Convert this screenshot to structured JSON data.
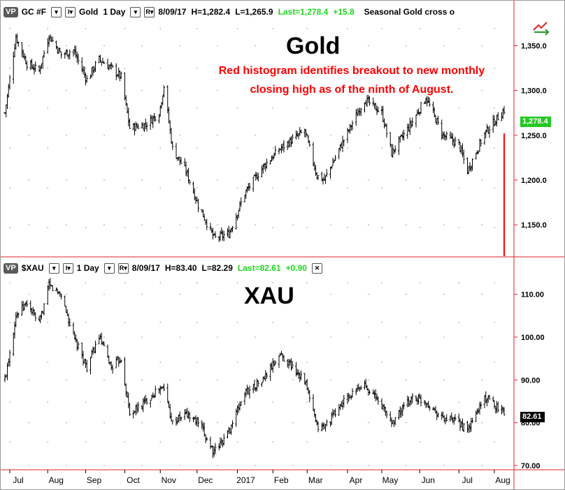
{
  "top_panel": {
    "toolbar": {
      "vp_label": "VP",
      "symbol": "GC #F",
      "instrument": "Gold",
      "period": "1 Day",
      "date": "8/09/17",
      "high": "H=1,282.4",
      "low": "L=1,265.9",
      "last": "Last=1,278.4",
      "change": "+15.8",
      "study": "Seasonal Gold cross o"
    },
    "title": "Gold",
    "annotation_line1": "Red histogram identifies breakout to new monthly",
    "annotation_line2": "closing high as of the ninth of August.",
    "last_price_tag": "1,278.4"
  },
  "bottom_panel": {
    "toolbar": {
      "vp_label": "VP",
      "symbol": "$XAU",
      "period": "1 Day",
      "date": "8/09/17",
      "high": "H=83.40",
      "low": "L=82.29",
      "last": "Last=82.61",
      "change": "+0.90",
      "close_symbol": "✕"
    },
    "title": "XAU",
    "last_price_tag": "82.61"
  },
  "colors": {
    "bars": "#000000",
    "accent_red": "#ff0000",
    "up_green": "#1fd51f",
    "axis_red": "#e02020"
  },
  "icons": [
    "dropdown-arrow-icon",
    "indicator-menu-icon",
    "arrows-swap-icon",
    "close-icon"
  ],
  "chart_data": [
    {
      "type": "ohlc",
      "title": "Gold",
      "y_ticks": [
        "1,150.0",
        "1,200.0",
        "1,250.0",
        "1,300.0",
        "1,350.0"
      ],
      "ylim": [
        1115,
        1380
      ],
      "x_ticks": [
        "Jul",
        "Aug",
        "Sep",
        "Oct",
        "Nov",
        "Dec",
        "2017",
        "Feb",
        "Mar",
        "Apr",
        "May",
        "Jun",
        "Jul",
        "Aug"
      ],
      "grid": "dotted",
      "approx_closes": {
        "x": [
          "2016-06-27",
          "2016-07-06",
          "2016-07-15",
          "2016-07-25",
          "2016-08-02",
          "2016-08-12",
          "2016-08-22",
          "2016-09-02",
          "2016-09-12",
          "2016-09-22",
          "2016-09-30",
          "2016-10-07",
          "2016-10-20",
          "2016-10-31",
          "2016-11-04",
          "2016-11-11",
          "2016-11-22",
          "2016-12-02",
          "2016-12-15",
          "2016-12-27",
          "2017-01-09",
          "2017-01-24",
          "2017-02-07",
          "2017-02-27",
          "2017-03-09",
          "2017-03-15",
          "2017-03-31",
          "2017-04-17",
          "2017-05-01",
          "2017-05-09",
          "2017-05-26",
          "2017-06-06",
          "2017-06-20",
          "2017-07-03",
          "2017-07-10",
          "2017-07-24",
          "2017-08-09"
        ],
        "y": [
          1275,
          1360,
          1330,
          1322,
          1362,
          1340,
          1345,
          1312,
          1335,
          1325,
          1315,
          1258,
          1262,
          1275,
          1305,
          1235,
          1210,
          1172,
          1135,
          1140,
          1185,
          1215,
          1235,
          1255,
          1205,
          1200,
          1245,
          1290,
          1275,
          1230,
          1265,
          1292,
          1250,
          1240,
          1210,
          1252,
          1278.4
        ]
      },
      "histogram": {
        "date": "2017-08-09",
        "level": 1252,
        "color": "#ff0000"
      }
    },
    {
      "type": "ohlc",
      "title": "XAU",
      "y_ticks": [
        "70.00",
        "80.00",
        "90.00",
        "100.00",
        "110.00"
      ],
      "ylim": [
        69,
        115
      ],
      "x_ticks": [
        "Jul",
        "Aug",
        "Sep",
        "Oct",
        "Nov",
        "Dec",
        "2017",
        "Feb",
        "Mar",
        "Apr",
        "May",
        "Jun",
        "Jul",
        "Aug"
      ],
      "grid": "dotted",
      "approx_closes": {
        "x": [
          "2016-06-27",
          "2016-07-06",
          "2016-07-15",
          "2016-07-25",
          "2016-08-02",
          "2016-08-12",
          "2016-08-22",
          "2016-09-02",
          "2016-09-12",
          "2016-09-22",
          "2016-09-30",
          "2016-10-07",
          "2016-10-20",
          "2016-10-31",
          "2016-11-04",
          "2016-11-11",
          "2016-11-22",
          "2016-12-02",
          "2016-12-15",
          "2016-12-27",
          "2017-01-09",
          "2017-01-24",
          "2017-02-07",
          "2017-02-27",
          "2017-03-09",
          "2017-03-15",
          "2017-03-31",
          "2017-04-17",
          "2017-05-01",
          "2017-05-09",
          "2017-05-26",
          "2017-06-06",
          "2017-06-20",
          "2017-07-03",
          "2017-07-10",
          "2017-07-24",
          "2017-08-09"
        ],
        "y": [
          90,
          105,
          108,
          103,
          112,
          110,
          100,
          93,
          100,
          93,
          95,
          82,
          85,
          88,
          88,
          80,
          82,
          80,
          73,
          78,
          87,
          90,
          96,
          90,
          79,
          79,
          85,
          89,
          84,
          80,
          86,
          85,
          81,
          80,
          78,
          86,
          82.61
        ]
      }
    }
  ]
}
